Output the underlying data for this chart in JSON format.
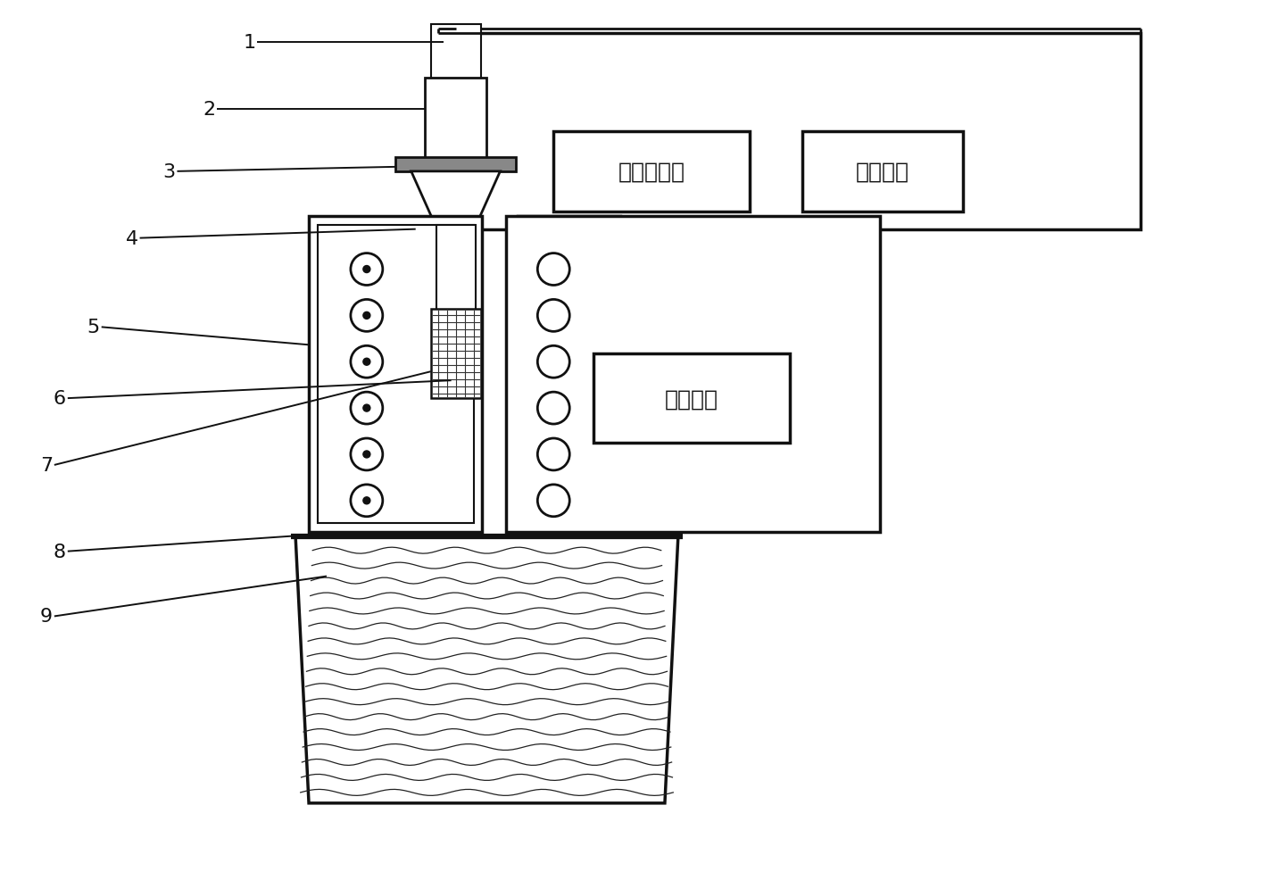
{
  "bg_color": "#ffffff",
  "lc": "#111111",
  "label_sg": "超声发生器",
  "label_wc": "水冷系统",
  "label_tc": "温控系统",
  "fig_w": 14.32,
  "fig_h": 9.87,
  "dpi": 100
}
